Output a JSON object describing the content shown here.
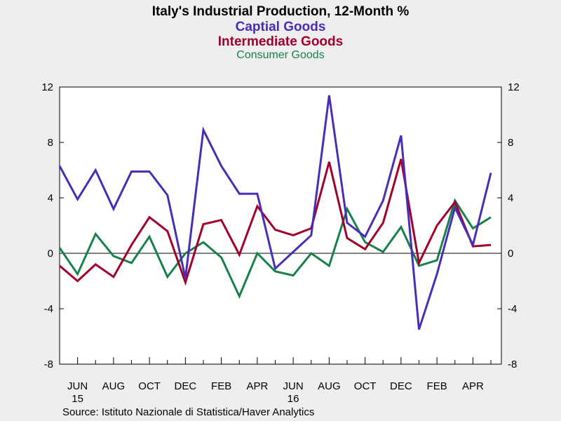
{
  "chart_data": {
    "type": "line",
    "title": "Italy's Industrial Production, 12-Month %",
    "x": [
      "2015-05",
      "2015-06",
      "2015-07",
      "2015-08",
      "2015-09",
      "2015-10",
      "2015-11",
      "2015-12",
      "2016-01",
      "2016-02",
      "2016-03",
      "2016-04",
      "2016-05",
      "2016-06",
      "2016-07",
      "2016-08",
      "2016-09",
      "2016-10",
      "2016-11",
      "2016-12",
      "2017-01",
      "2017-02",
      "2017-03",
      "2017-04",
      "2017-05"
    ],
    "x_tick_labels": [
      {
        "label": "JUN",
        "year": "15",
        "index": 1
      },
      {
        "label": "AUG",
        "year": "",
        "index": 3
      },
      {
        "label": "OCT",
        "year": "",
        "index": 5
      },
      {
        "label": "DEC",
        "year": "",
        "index": 7
      },
      {
        "label": "FEB",
        "year": "",
        "index": 9
      },
      {
        "label": "APR",
        "year": "",
        "index": 11
      },
      {
        "label": "JUN",
        "year": "16",
        "index": 13
      },
      {
        "label": "AUG",
        "year": "",
        "index": 15
      },
      {
        "label": "OCT",
        "year": "",
        "index": 17
      },
      {
        "label": "DEC",
        "year": "",
        "index": 19
      },
      {
        "label": "FEB",
        "year": "",
        "index": 21
      },
      {
        "label": "APR",
        "year": "",
        "index": 23
      }
    ],
    "ylim": [
      -8,
      12
    ],
    "y_ticks": [
      -8,
      -4,
      0,
      4,
      8,
      12
    ],
    "grid": false,
    "series": [
      {
        "name": "Captial Goods",
        "color": "#4b2db5",
        "values": [
          6.3,
          3.9,
          6.0,
          3.2,
          5.9,
          5.9,
          4.2,
          -1.8,
          8.9,
          6.3,
          4.3,
          4.3,
          -1.1,
          0.1,
          1.3,
          11.4,
          2.2,
          1.2,
          3.8,
          8.5,
          -5.5,
          -1.5,
          3.3,
          0.6,
          5.8
        ]
      },
      {
        "name": "Intermediate Goods",
        "color": "#a0002a",
        "values": [
          -0.9,
          -2.0,
          -0.8,
          -1.7,
          0.6,
          2.6,
          1.6,
          -2.1,
          2.1,
          2.4,
          -0.1,
          3.4,
          1.7,
          1.3,
          1.8,
          6.6,
          1.1,
          0.3,
          2.2,
          6.8,
          -0.7,
          2.0,
          3.7,
          0.5,
          0.6
        ]
      },
      {
        "name": "Consumer Goods",
        "color": "#16824a",
        "values": [
          0.4,
          -1.5,
          1.4,
          -0.2,
          -0.7,
          1.2,
          -1.7,
          0.0,
          0.8,
          -0.3,
          -3.1,
          0.0,
          -1.3,
          -1.6,
          0.0,
          -0.9,
          3.2,
          0.8,
          0.1,
          1.9,
          -0.9,
          -0.5,
          3.8,
          1.8,
          2.6
        ]
      }
    ]
  },
  "source": "Source:  Istituto Nazionale di Statistica/Haver Analytics"
}
